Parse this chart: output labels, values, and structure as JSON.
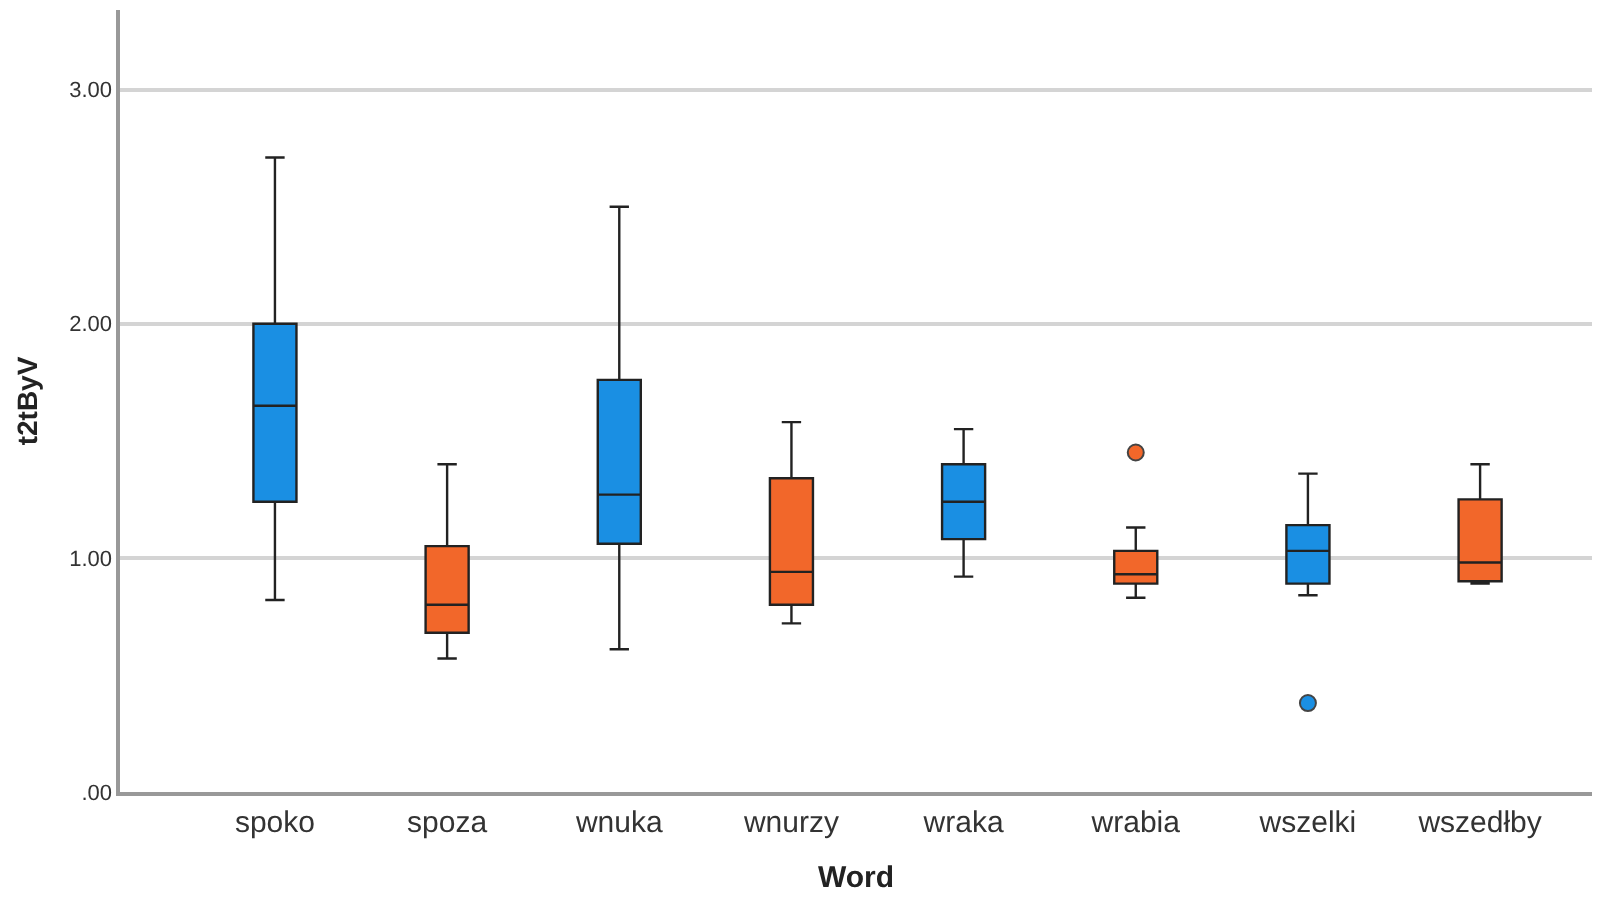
{
  "chart_data": {
    "type": "box",
    "xlabel": "Word",
    "ylabel": "t2tByV",
    "categories": [
      "spoko",
      "spoza",
      "wnuka",
      "wnurzy",
      "wraka",
      "wrabia",
      "wszelki",
      "wszedłby"
    ],
    "colors": [
      "#1a8fe3",
      "#f2672a",
      "#1a8fe3",
      "#f2672a",
      "#1a8fe3",
      "#f2672a",
      "#1a8fe3",
      "#f2672a"
    ],
    "boxes": [
      {
        "low": 0.82,
        "q1": 1.24,
        "median": 1.65,
        "q3": 2.0,
        "high": 2.71
      },
      {
        "low": 0.57,
        "q1": 0.68,
        "median": 0.8,
        "q3": 1.05,
        "high": 1.4
      },
      {
        "low": 0.61,
        "q1": 1.06,
        "median": 1.27,
        "q3": 1.76,
        "high": 2.5
      },
      {
        "low": 0.72,
        "q1": 0.8,
        "median": 0.94,
        "q3": 1.34,
        "high": 1.58
      },
      {
        "low": 0.92,
        "q1": 1.08,
        "median": 1.24,
        "q3": 1.4,
        "high": 1.55
      },
      {
        "low": 0.83,
        "q1": 0.89,
        "median": 0.93,
        "q3": 1.03,
        "high": 1.13,
        "outliers": [
          1.45
        ]
      },
      {
        "low": 0.84,
        "q1": 0.89,
        "median": 1.03,
        "q3": 1.14,
        "high": 1.36,
        "outliers": [
          0.38
        ]
      },
      {
        "low": 0.89,
        "q1": 0.9,
        "median": 0.98,
        "q3": 1.25,
        "high": 1.4
      }
    ],
    "ylim": [
      0,
      3.34
    ],
    "yticks": [
      {
        "value": 0,
        "label": ".00"
      },
      {
        "value": 1,
        "label": "1.00"
      },
      {
        "value": 2,
        "label": "2.00"
      },
      {
        "value": 3,
        "label": "3.00"
      }
    ],
    "grid": "y"
  }
}
